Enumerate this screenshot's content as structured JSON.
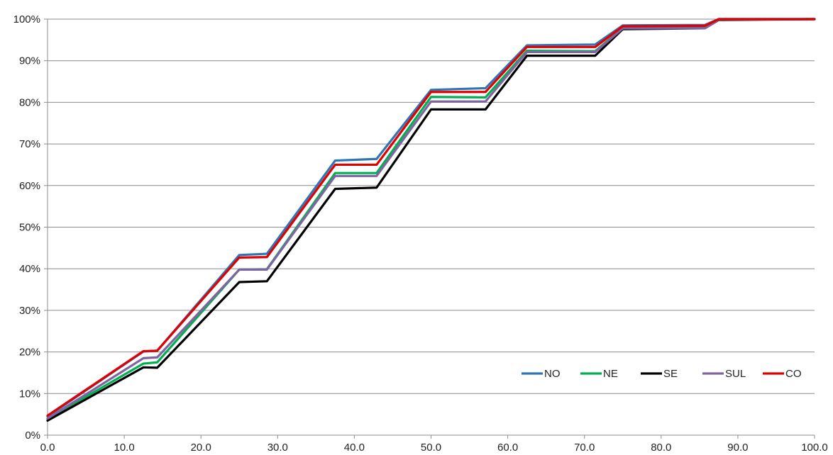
{
  "chart_data": {
    "type": "line",
    "title": "",
    "xlabel": "",
    "ylabel": "",
    "xlim": [
      0,
      100
    ],
    "ylim": [
      0,
      100
    ],
    "grid": "horizontal",
    "legend_position": "bottom-right",
    "x_ticks": [
      0,
      10,
      20,
      30,
      40,
      50,
      60,
      70,
      80,
      90,
      100
    ],
    "x_tick_labels": [
      "0.0",
      "10.0",
      "20.0",
      "30.0",
      "40.0",
      "50.0",
      "60.0",
      "70.0",
      "80.0",
      "90.0",
      "100.0"
    ],
    "y_ticks": [
      0,
      10,
      20,
      30,
      40,
      50,
      60,
      70,
      80,
      90,
      100
    ],
    "y_tick_labels": [
      "0%",
      "10%",
      "20%",
      "30%",
      "40%",
      "50%",
      "60%",
      "70%",
      "80%",
      "90%",
      "100%"
    ],
    "x": [
      0,
      12.5,
      14.3,
      25,
      28.6,
      37.5,
      42.9,
      50,
      57.1,
      62.5,
      71.4,
      75,
      85.7,
      87.5,
      100
    ],
    "series": [
      {
        "name": "NO",
        "color": "#2E75B6",
        "values": [
          4.5,
          20.1,
          20.3,
          43.3,
          43.6,
          66.0,
          66.4,
          83.0,
          83.4,
          93.7,
          93.9,
          98.5,
          98.6,
          100,
          100
        ]
      },
      {
        "name": "NE",
        "color": "#00B050",
        "values": [
          3.9,
          17.2,
          17.5,
          39.8,
          39.9,
          63.0,
          63.0,
          81.3,
          81.2,
          92.4,
          92.3,
          97.9,
          98.1,
          100,
          100
        ]
      },
      {
        "name": "SE",
        "color": "#000000",
        "values": [
          3.5,
          16.3,
          16.2,
          36.8,
          37.0,
          59.2,
          59.5,
          78.3,
          78.3,
          91.2,
          91.2,
          97.6,
          97.8,
          99.8,
          100
        ]
      },
      {
        "name": "SUL",
        "color": "#8064A2",
        "values": [
          4.0,
          18.5,
          18.7,
          39.8,
          39.8,
          62.3,
          62.3,
          80.2,
          80.2,
          92.1,
          92.1,
          97.8,
          97.8,
          99.9,
          100
        ]
      },
      {
        "name": "CO",
        "color": "#E00000",
        "values": [
          4.7,
          20.2,
          20.3,
          42.7,
          42.8,
          65.0,
          65.0,
          82.5,
          82.5,
          93.3,
          93.3,
          98.3,
          98.4,
          100,
          100
        ]
      }
    ]
  }
}
